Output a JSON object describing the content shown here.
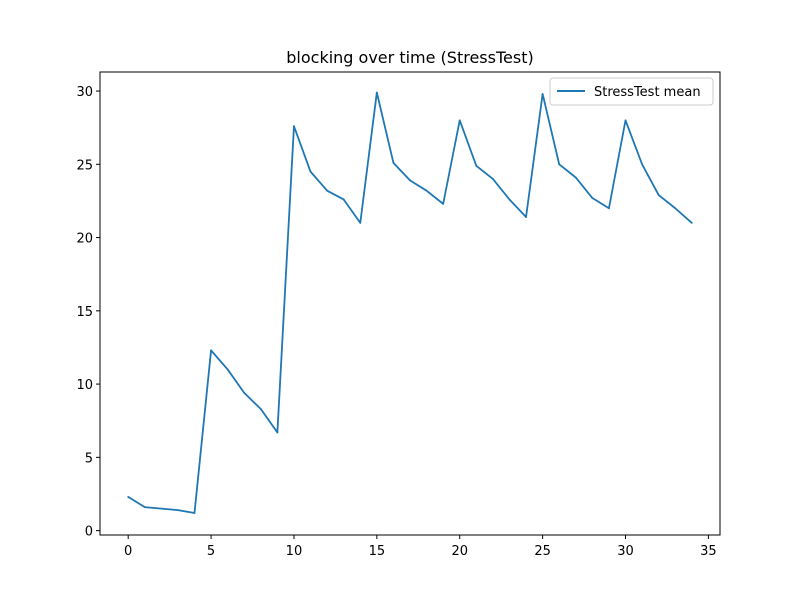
{
  "chart_data": {
    "type": "line",
    "title": "blocking over time (StressTest)",
    "xlabel": "",
    "ylabel": "",
    "xlim": [
      -1.7,
      35.7
    ],
    "ylim": [
      -0.3,
      31.3
    ],
    "x_ticks": [
      0,
      5,
      10,
      15,
      20,
      25,
      30,
      35
    ],
    "y_ticks": [
      0,
      5,
      10,
      15,
      20,
      25,
      30
    ],
    "grid": false,
    "legend_position": "upper right",
    "series": [
      {
        "name": "StressTest mean",
        "color": "#1f77b4",
        "x": [
          0,
          1,
          2,
          3,
          4,
          5,
          6,
          7,
          8,
          9,
          10,
          11,
          12,
          13,
          14,
          15,
          16,
          17,
          18,
          19,
          20,
          21,
          22,
          23,
          24,
          25,
          26,
          27,
          28,
          29,
          30,
          31,
          32,
          33,
          34
        ],
        "y": [
          2.3,
          1.6,
          1.5,
          1.4,
          1.2,
          12.3,
          11.0,
          9.4,
          8.3,
          6.7,
          27.6,
          24.5,
          23.2,
          22.6,
          21.0,
          29.9,
          25.1,
          23.9,
          23.2,
          22.3,
          28.0,
          24.9,
          24.0,
          22.6,
          21.4,
          29.8,
          25.0,
          24.1,
          22.7,
          22.0,
          28.0,
          25.0,
          22.9,
          22.0,
          21.0
        ]
      }
    ]
  }
}
